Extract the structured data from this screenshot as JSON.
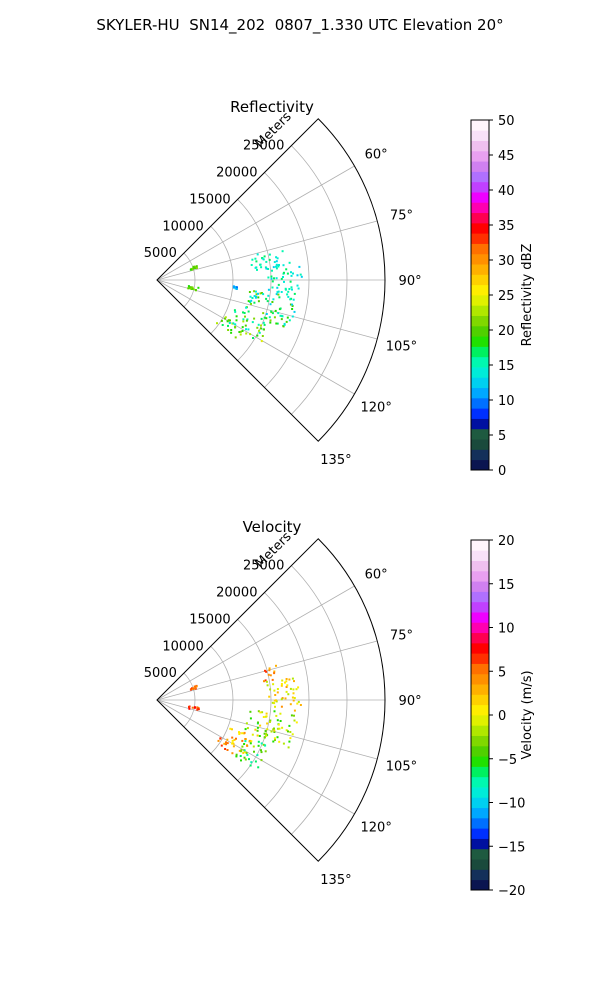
{
  "figure": {
    "title": "SKYLER-HU  SN14_202  0807_1.330 UTC Elevation 20°"
  },
  "chart_data": [
    {
      "type": "heatmap",
      "projection": "polar-sector",
      "title": "Reflectivity",
      "radial_axis": {
        "label": "Meters",
        "ticks": [
          5000,
          10000,
          15000,
          20000,
          25000
        ],
        "tick_labels": [
          "5000",
          "10000",
          "15000",
          "20000",
          "25000"
        ],
        "range": [
          0,
          30000
        ]
      },
      "angular_axis": {
        "range_deg": [
          45,
          135
        ],
        "ticks_deg": [
          60,
          75,
          90,
          105,
          120,
          135
        ],
        "tick_labels": [
          "60°",
          "75°",
          "90°",
          "105°",
          "120°",
          "135°"
        ]
      },
      "grid": true,
      "colorbar": {
        "label": "Reflectivity dBZ",
        "min": 0,
        "max": 50,
        "ticks": [
          0,
          5,
          10,
          15,
          20,
          25,
          30,
          35,
          40,
          45,
          50
        ],
        "tick_labels": [
          "0",
          "5",
          "10",
          "15",
          "20",
          "25",
          "30",
          "35",
          "40",
          "45",
          "50"
        ],
        "colors": [
          "#0a1550",
          "#14305a",
          "#1a4a3c",
          "#1e5a40",
          "#0010a0",
          "#0030ff",
          "#0070ff",
          "#00a8ff",
          "#00d0f0",
          "#00ecd8",
          "#00f8b0",
          "#00f060",
          "#20e000",
          "#50d000",
          "#80d800",
          "#b0e800",
          "#e0f000",
          "#ffee00",
          "#ffd000",
          "#ffb000",
          "#ff9000",
          "#ff7000",
          "#ff3000",
          "#ff0000",
          "#ff0050",
          "#ff00b0",
          "#ee00ff",
          "#c040ff",
          "#b070ff",
          "#d080f0",
          "#e8a0f0",
          "#f0c0f0",
          "#f8e0f8",
          "#fff5fb"
        ]
      },
      "clusters": [
        {
          "az_deg": [
            75,
            84
          ],
          "range_m": [
            12000,
            17500
          ],
          "values": [
            13,
            17
          ]
        },
        {
          "az_deg": [
            83,
            98
          ],
          "range_m": [
            14500,
            19000
          ],
          "values": [
            12,
            17
          ]
        },
        {
          "az_deg": [
            96,
            110
          ],
          "range_m": [
            12000,
            19000
          ],
          "values": [
            12,
            22
          ]
        },
        {
          "az_deg": [
            110,
            121
          ],
          "range_m": [
            10000,
            16000
          ],
          "values": [
            14,
            24
          ]
        },
        {
          "az_deg": [
            120,
            126
          ],
          "range_m": [
            9500,
            13000
          ],
          "values": [
            15,
            23
          ]
        },
        {
          "az_deg": [
            68,
            72
          ],
          "range_m": [
            4500,
            5500
          ],
          "values": [
            18,
            22
          ]
        },
        {
          "az_deg": [
            99,
            104
          ],
          "range_m": [
            4000,
            5500
          ],
          "values": [
            18,
            22
          ]
        },
        {
          "az_deg": [
            94,
            96
          ],
          "range_m": [
            10000,
            10500
          ],
          "values": [
            10,
            12
          ]
        }
      ]
    },
    {
      "type": "heatmap",
      "projection": "polar-sector",
      "title": "Velocity",
      "radial_axis": {
        "label": "Meters",
        "ticks": [
          5000,
          10000,
          15000,
          20000,
          25000
        ],
        "tick_labels": [
          "5000",
          "10000",
          "15000",
          "20000",
          "25000"
        ],
        "range": [
          0,
          30000
        ]
      },
      "angular_axis": {
        "range_deg": [
          45,
          135
        ],
        "ticks_deg": [
          60,
          75,
          90,
          105,
          120,
          135
        ],
        "tick_labels": [
          "60°",
          "75°",
          "90°",
          "105°",
          "120°",
          "135°"
        ]
      },
      "grid": true,
      "colorbar": {
        "label": "Velocity (m/s)",
        "min": -20,
        "max": 20,
        "ticks": [
          -20,
          -15,
          -10,
          -5,
          0,
          5,
          10,
          15,
          20
        ],
        "tick_labels": [
          "−20",
          "−15",
          "−10",
          "−5",
          "0",
          "5",
          "10",
          "15",
          "20"
        ],
        "colors": [
          "#0a1550",
          "#14305a",
          "#1a4a3c",
          "#1e5a40",
          "#0010a0",
          "#0030ff",
          "#0070ff",
          "#00a8ff",
          "#00d0f0",
          "#00ecd8",
          "#00f8b0",
          "#00f060",
          "#20e000",
          "#50d000",
          "#80d800",
          "#b0e800",
          "#e0f000",
          "#ffee00",
          "#ffd000",
          "#ffb000",
          "#ff9000",
          "#ff7000",
          "#ff3000",
          "#ff0000",
          "#ff0050",
          "#ff00b0",
          "#ee00ff",
          "#c040ff",
          "#b070ff",
          "#d080f0",
          "#e8a0f0",
          "#f0c0f0",
          "#f8e0f8",
          "#fff5fb"
        ]
      },
      "clusters": [
        {
          "az_deg": [
            73,
            80
          ],
          "range_m": [
            14000,
            16500
          ],
          "values": [
            3,
            8
          ]
        },
        {
          "az_deg": [
            80,
            95
          ],
          "range_m": [
            14500,
            19000
          ],
          "values": [
            -2,
            4
          ]
        },
        {
          "az_deg": [
            95,
            110
          ],
          "range_m": [
            12000,
            18500
          ],
          "values": [
            -6,
            2
          ]
        },
        {
          "az_deg": [
            110,
            122
          ],
          "range_m": [
            10000,
            13500
          ],
          "values": [
            0,
            5
          ]
        },
        {
          "az_deg": [
            112,
            126
          ],
          "range_m": [
            12500,
            16000
          ],
          "values": [
            -8,
            -2
          ]
        },
        {
          "az_deg": [
            120,
            126
          ],
          "range_m": [
            9500,
            12000
          ],
          "values": [
            3,
            7
          ]
        },
        {
          "az_deg": [
            68,
            72
          ],
          "range_m": [
            4500,
            5500
          ],
          "values": [
            4,
            7
          ]
        },
        {
          "az_deg": [
            99,
            104
          ],
          "range_m": [
            4000,
            5500
          ],
          "values": [
            5,
            8
          ]
        }
      ]
    }
  ]
}
